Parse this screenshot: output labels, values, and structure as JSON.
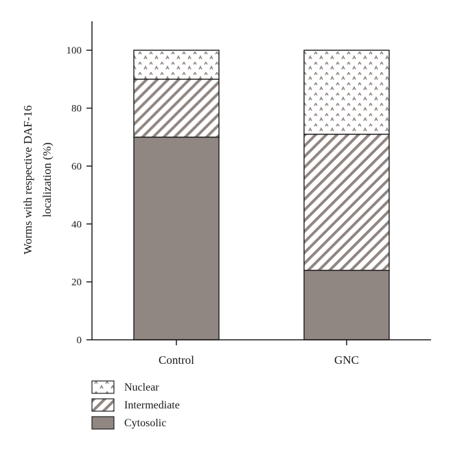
{
  "chart_data": {
    "type": "bar",
    "stacked": true,
    "categories": [
      "Control",
      "GNC"
    ],
    "series": [
      {
        "name": "Cytosolic",
        "values": [
          70,
          24
        ],
        "color": "#918782",
        "pattern": "solid"
      },
      {
        "name": "Intermediate",
        "values": [
          20,
          47
        ],
        "color": "#918782",
        "pattern": "diagonal-hatch"
      },
      {
        "name": "Nuclear",
        "values": [
          10,
          29
        ],
        "color": "#918782",
        "pattern": "dots"
      }
    ],
    "ylabel_lines": [
      "Worms with respective DAF-16",
      "localization (%)"
    ],
    "xlabel": "",
    "ylim": [
      0,
      110
    ],
    "yticks": [
      0,
      20,
      40,
      60,
      80,
      100
    ],
    "grid": false,
    "legend_position": "bottom-left",
    "legend_order": [
      "Nuclear",
      "Intermediate",
      "Cytosolic"
    ]
  }
}
